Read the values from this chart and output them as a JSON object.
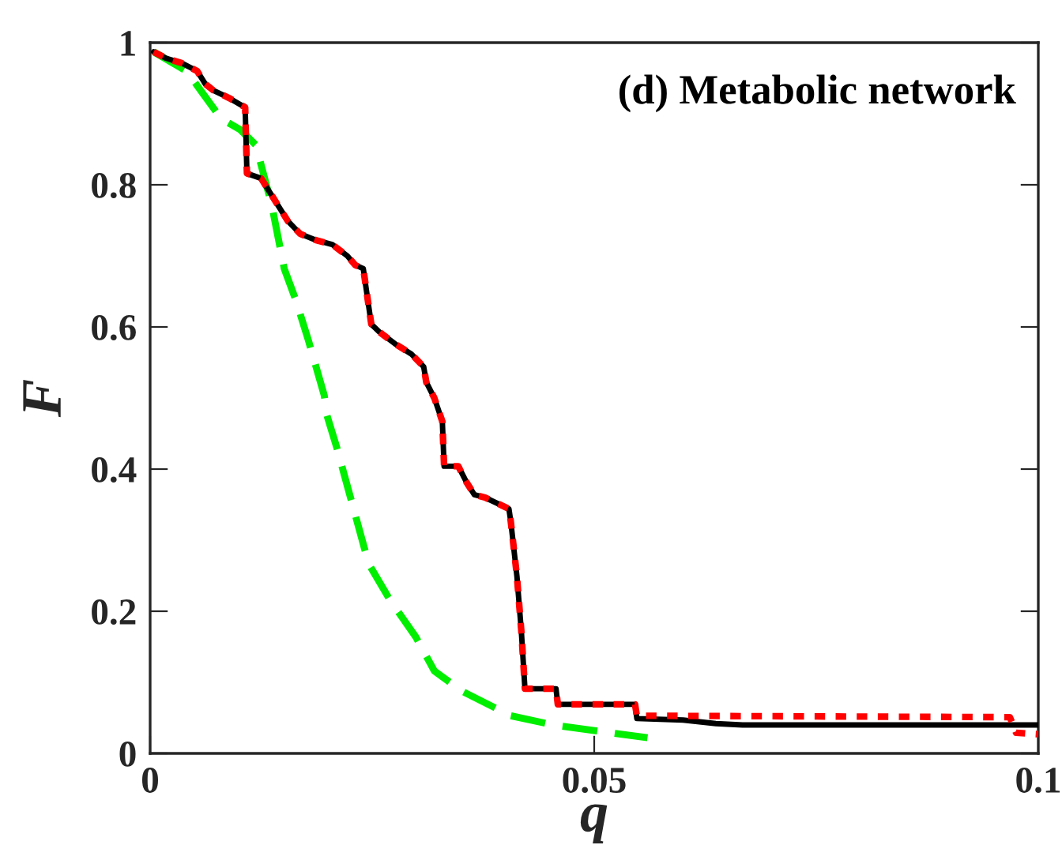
{
  "chart_data": {
    "type": "line",
    "xlabel": "q",
    "ylabel": "F",
    "annotations": [
      "(d) Metabolic network"
    ],
    "xlim": [
      0,
      0.1
    ],
    "xticks": [
      0,
      0.05,
      0.1
    ],
    "ylim": [
      0,
      1
    ],
    "yticks": [
      0,
      0.2,
      0.4,
      0.6,
      0.8,
      1
    ],
    "grid": false,
    "legend": false,
    "series": [
      {
        "color": "#000000",
        "line_style": "solid",
        "x": [
          0.0004,
          0.0018,
          0.0036,
          0.0053,
          0.0062,
          0.0071,
          0.0089,
          0.0107,
          0.0109,
          0.0125,
          0.0133,
          0.0144,
          0.0155,
          0.0169,
          0.0187,
          0.0205,
          0.0222,
          0.0231,
          0.024,
          0.0249,
          0.0258,
          0.0276,
          0.0294,
          0.0308,
          0.0311,
          0.032,
          0.0329,
          0.0331,
          0.0347,
          0.0356,
          0.0365,
          0.0377,
          0.0404,
          0.0406,
          0.0413,
          0.0418,
          0.0422,
          0.0457,
          0.0459,
          0.0546,
          0.0548,
          0.06,
          0.0637,
          0.0667,
          0.1
        ],
        "values": [
          0.987,
          0.978,
          0.971,
          0.96,
          0.942,
          0.933,
          0.922,
          0.909,
          0.816,
          0.809,
          0.793,
          0.771,
          0.749,
          0.731,
          0.722,
          0.716,
          0.7,
          0.687,
          0.682,
          0.604,
          0.593,
          0.576,
          0.562,
          0.544,
          0.522,
          0.5,
          0.467,
          0.404,
          0.404,
          0.382,
          0.364,
          0.36,
          0.344,
          0.327,
          0.249,
          0.171,
          0.091,
          0.091,
          0.069,
          0.069,
          0.049,
          0.047,
          0.042,
          0.04,
          0.04
        ]
      },
      {
        "color": "#ff0000",
        "line_style": "dotted",
        "x": [
          0.0004,
          0.0018,
          0.0036,
          0.0053,
          0.0062,
          0.0071,
          0.0089,
          0.0107,
          0.0109,
          0.0125,
          0.0133,
          0.0144,
          0.0155,
          0.0169,
          0.0187,
          0.0205,
          0.0222,
          0.0231,
          0.024,
          0.0249,
          0.0258,
          0.0276,
          0.0294,
          0.0308,
          0.0311,
          0.032,
          0.0329,
          0.0331,
          0.0347,
          0.0356,
          0.0365,
          0.0377,
          0.0404,
          0.0406,
          0.0413,
          0.0418,
          0.0422,
          0.0457,
          0.0459,
          0.0546,
          0.0548,
          0.0968,
          0.0975,
          0.1
        ],
        "values": [
          0.987,
          0.978,
          0.971,
          0.96,
          0.942,
          0.933,
          0.922,
          0.909,
          0.816,
          0.809,
          0.793,
          0.771,
          0.749,
          0.731,
          0.722,
          0.716,
          0.7,
          0.687,
          0.682,
          0.604,
          0.593,
          0.576,
          0.562,
          0.544,
          0.522,
          0.5,
          0.467,
          0.404,
          0.404,
          0.382,
          0.364,
          0.36,
          0.344,
          0.327,
          0.249,
          0.171,
          0.091,
          0.091,
          0.069,
          0.069,
          0.053,
          0.051,
          0.029,
          0.027
        ]
      },
      {
        "color": "#00ee00",
        "line_style": "dashed",
        "x": [
          0.0004,
          0.0041,
          0.008,
          0.0101,
          0.0119,
          0.0137,
          0.0151,
          0.0164,
          0.0178,
          0.0196,
          0.0199,
          0.021,
          0.0228,
          0.0246,
          0.027,
          0.0299,
          0.032,
          0.0352,
          0.0406,
          0.0454,
          0.0507,
          0.056
        ],
        "values": [
          0.987,
          0.96,
          0.893,
          0.878,
          0.856,
          0.771,
          0.682,
          0.638,
          0.582,
          0.504,
          0.476,
          0.431,
          0.349,
          0.267,
          0.216,
          0.164,
          0.116,
          0.087,
          0.053,
          0.04,
          0.031,
          0.022
        ]
      }
    ]
  }
}
